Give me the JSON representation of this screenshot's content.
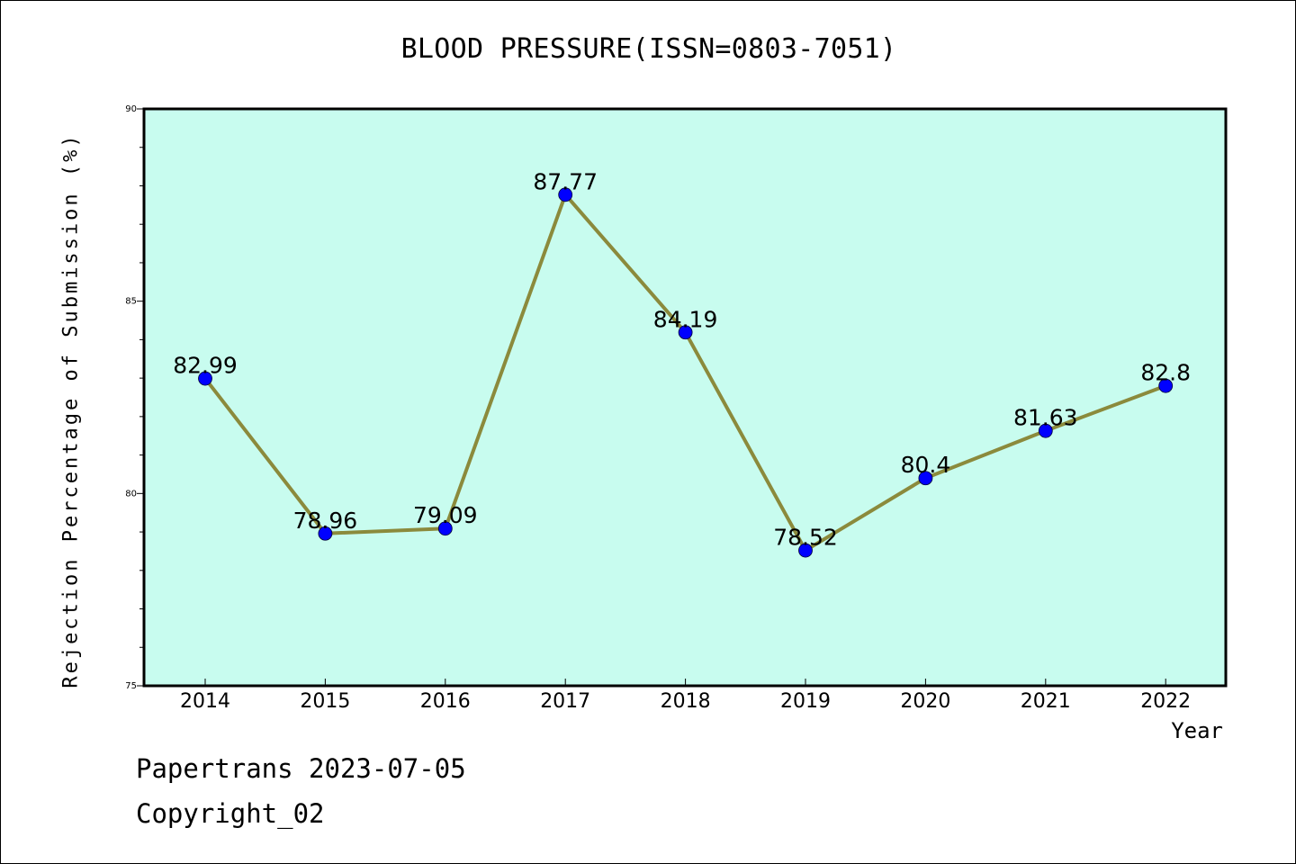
{
  "chart_data": {
    "type": "line",
    "title": "BLOOD PRESSURE(ISSN=0803-7051)",
    "xlabel": "Year",
    "ylabel": "Rejection Percentage of Submission (%)",
    "categories": [
      "2014",
      "2015",
      "2016",
      "2017",
      "2018",
      "2019",
      "2020",
      "2021",
      "2022"
    ],
    "series": [
      {
        "values": [
          82.99,
          78.96,
          79.09,
          87.77,
          84.19,
          78.52,
          80.4,
          81.63,
          82.8
        ],
        "labels": [
          "82.99",
          "78.96",
          "79.09",
          "87.77",
          "84.19",
          "78.52",
          "80.4",
          "81.63",
          "82.8"
        ],
        "line_color": "#8b8a3c",
        "marker_color": "#0000ff"
      }
    ],
    "ylim": [
      75,
      90
    ],
    "yticks": [
      "75",
      "80",
      "85",
      "90"
    ],
    "plot_background": "#c8fcef",
    "grid": false,
    "legend": "none"
  },
  "footer": {
    "line1": "Papertrans 2023-07-05",
    "line2": "Copyright_02"
  }
}
